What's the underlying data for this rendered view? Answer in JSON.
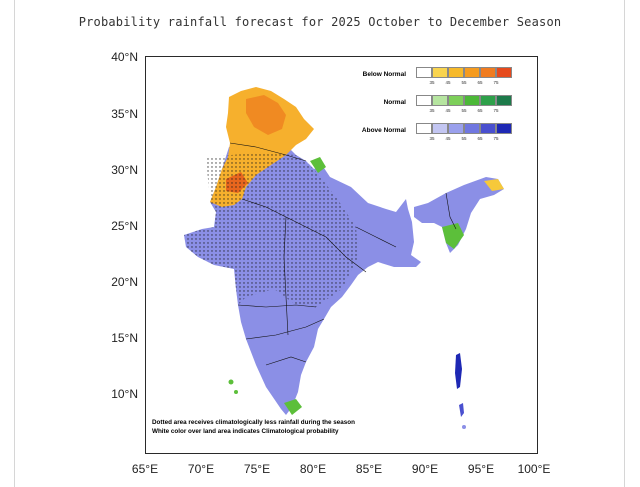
{
  "title": "Probability rainfall forecast for 2025 October to December Season",
  "axes": {
    "y_labels": [
      "40°N",
      "35°N",
      "30°N",
      "25°N",
      "20°N",
      "15°N",
      "10°N"
    ],
    "x_labels": [
      "65°E",
      "70°E",
      "75°E",
      "80°E",
      "85°E",
      "90°E",
      "95°E",
      "100°E"
    ]
  },
  "legend": {
    "ticks": [
      "35",
      "45",
      "55",
      "65",
      "75"
    ],
    "rows": [
      {
        "label": "Below Normal",
        "colors": [
          "#ffffff",
          "#f9d44f",
          "#f6b92a",
          "#f59b1f",
          "#f07c20",
          "#e64a1d"
        ]
      },
      {
        "label": "Normal",
        "colors": [
          "#ffffff",
          "#b6e5a0",
          "#7dcf5a",
          "#4cb838",
          "#2ea04a",
          "#1d7a4a"
        ]
      },
      {
        "label": "Above Normal",
        "colors": [
          "#ffffff",
          "#c3c6f2",
          "#9aa0ec",
          "#7077e0",
          "#4a50cf",
          "#1e28b4"
        ]
      }
    ]
  },
  "notes": [
    "Dotted area receives climatologically less rainfall during the season",
    "White color over land area indicates Climatological probability"
  ],
  "colors": {
    "above_normal_main": "#8b8fe6",
    "below_normal_main": "#f6b02d",
    "normal_green": "#5cbf3a",
    "boundary": "#111111"
  }
}
